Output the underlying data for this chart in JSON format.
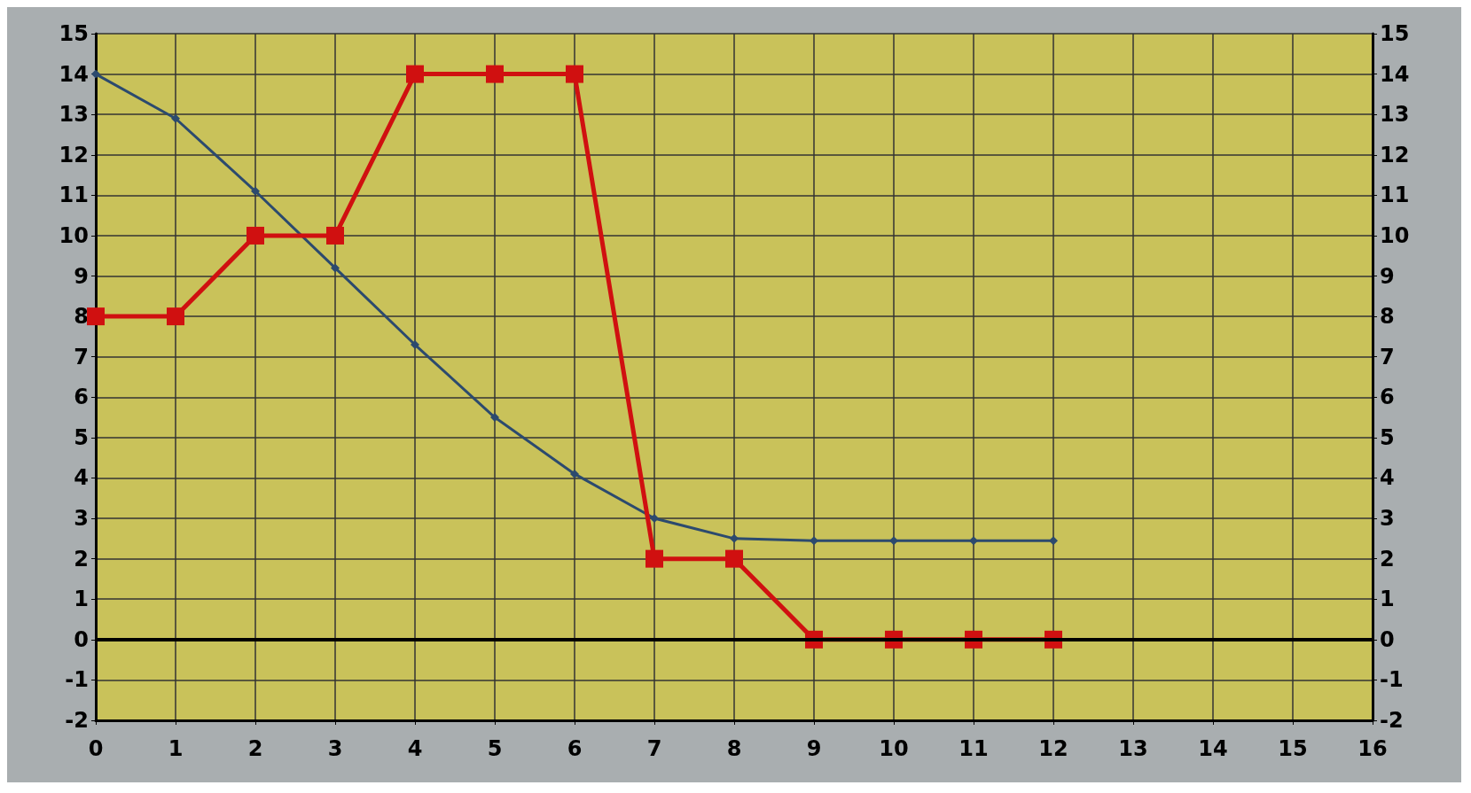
{
  "chart_data": {
    "type": "line",
    "x": [
      0,
      1,
      2,
      3,
      4,
      5,
      6,
      7,
      8,
      9,
      10,
      11,
      12
    ],
    "series": [
      {
        "color": "#2c4a6e",
        "marker": "diamond",
        "values": [
          14,
          12.9,
          11.1,
          9.2,
          7.3,
          5.5,
          4.1,
          3.0,
          2.5,
          2.45,
          2.45,
          2.45,
          2.45
        ]
      },
      {
        "color": "#d01010",
        "marker": "square",
        "values": [
          8,
          8,
          10,
          10,
          14,
          14,
          14,
          2,
          2,
          0,
          0,
          0,
          0
        ]
      }
    ],
    "xlim": [
      0,
      16
    ],
    "xticks": [
      0,
      1,
      2,
      3,
      4,
      5,
      6,
      7,
      8,
      9,
      10,
      11,
      12,
      13,
      14,
      15,
      16
    ],
    "ylim": [
      -2,
      15
    ],
    "yticks": [
      -2,
      -1,
      0,
      1,
      2,
      3,
      4,
      5,
      6,
      7,
      8,
      9,
      10,
      11,
      12,
      13,
      14,
      15
    ],
    "y2lim": [
      -2,
      15
    ],
    "y2ticks": [
      -2,
      -1,
      0,
      1,
      2,
      3,
      4,
      5,
      6,
      7,
      8,
      9,
      10,
      11,
      12,
      13,
      14,
      15
    ],
    "ref_lines": [
      {
        "axis": "y",
        "value": 0,
        "color": "#000000"
      }
    ],
    "grid": true,
    "line_style": "solid"
  }
}
